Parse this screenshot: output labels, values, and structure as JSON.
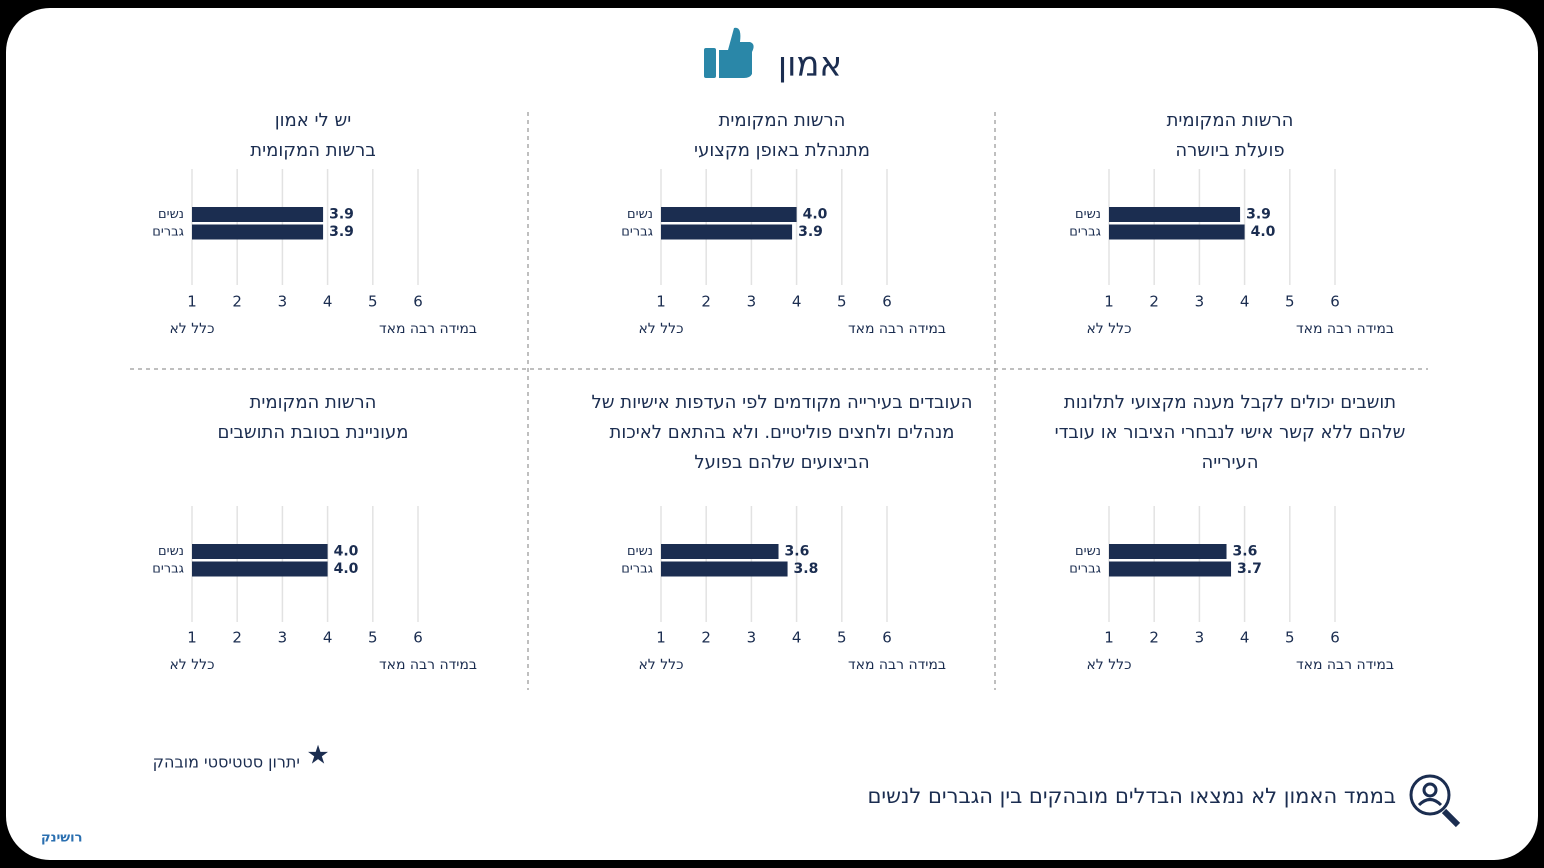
{
  "title": "אמון",
  "star_note": "יתרון סטטיסטי מובהק",
  "note": "בממד האמון לא נמצאו הבדלים מובהקים בין הגברים לנשים",
  "logo": "רושינק",
  "chart_data": [
    {
      "type": "bar",
      "orientation": "horizontal",
      "title": "הרשות המקומית\nפועלת ביושרה",
      "categories": [
        "נשים",
        "גברים"
      ],
      "values": [
        3.9,
        4.0
      ],
      "value_labels": [
        "3.9",
        "4.0"
      ],
      "color": "#1b2d50",
      "xlim": [
        1,
        6
      ],
      "xticks": [
        1,
        2,
        3,
        4,
        5,
        6
      ],
      "grid": true,
      "xlabel_min": "כלל לא",
      "xlabel_max": "במידה רבה מאד"
    },
    {
      "type": "bar",
      "orientation": "horizontal",
      "title": "הרשות המקומית\nמתנהלת באופן מקצועי",
      "categories": [
        "נשים",
        "גברים"
      ],
      "values": [
        4.0,
        3.9
      ],
      "value_labels": [
        "4.0",
        "3.9"
      ],
      "color": "#1b2d50",
      "xlim": [
        1,
        6
      ],
      "xticks": [
        1,
        2,
        3,
        4,
        5,
        6
      ],
      "grid": true,
      "xlabel_min": "כלל לא",
      "xlabel_max": "במידה רבה מאד"
    },
    {
      "type": "bar",
      "orientation": "horizontal",
      "title": "יש לי אמון\nברשות המקומית",
      "categories": [
        "נשים",
        "גברים"
      ],
      "values": [
        3.9,
        3.9
      ],
      "value_labels": [
        "3.9",
        "3.9"
      ],
      "color": "#1b2d50",
      "xlim": [
        1,
        6
      ],
      "xticks": [
        1,
        2,
        3,
        4,
        5,
        6
      ],
      "grid": true,
      "xlabel_min": "כלל לא",
      "xlabel_max": "במידה רבה מאד"
    },
    {
      "type": "bar",
      "orientation": "horizontal",
      "title": "תושבים יכולים לקבל מענה מקצועי לתלונות\nשלהם ללא קשר אישי לנבחרי הציבור או עובדי\nהעירייה",
      "categories": [
        "נשים",
        "גברים"
      ],
      "values": [
        3.6,
        3.7
      ],
      "value_labels": [
        "3.6",
        "3.7"
      ],
      "color": "#1b2d50",
      "xlim": [
        1,
        6
      ],
      "xticks": [
        1,
        2,
        3,
        4,
        5,
        6
      ],
      "grid": true,
      "xlabel_min": "כלל לא",
      "xlabel_max": "במידה רבה מאד"
    },
    {
      "type": "bar",
      "orientation": "horizontal",
      "title": "העובדים בעירייה מקודמים לפי העדפות אישיות של\nמנהלים ולחצים פוליטיים. ולא בהתאם לאיכות\nהביצועים שלהם בפועל",
      "categories": [
        "נשים",
        "גברים"
      ],
      "values": [
        3.6,
        3.8
      ],
      "value_labels": [
        "3.6",
        "3.8"
      ],
      "color": "#1b2d50",
      "xlim": [
        1,
        6
      ],
      "xticks": [
        1,
        2,
        3,
        4,
        5,
        6
      ],
      "grid": true,
      "xlabel_min": "כלל לא",
      "xlabel_max": "במידה רבה מאד"
    },
    {
      "type": "bar",
      "orientation": "horizontal",
      "title": "הרשות המקומית\nמעוניינת בטובת התושבים",
      "categories": [
        "נשים",
        "גברים"
      ],
      "values": [
        4.0,
        4.0
      ],
      "value_labels": [
        "4.0",
        "4.0"
      ],
      "color": "#1b2d50",
      "xlim": [
        1,
        6
      ],
      "xticks": [
        1,
        2,
        3,
        4,
        5,
        6
      ],
      "grid": true,
      "xlabel_min": "כלל לא",
      "xlabel_max": "במידה רבה מאד"
    }
  ]
}
